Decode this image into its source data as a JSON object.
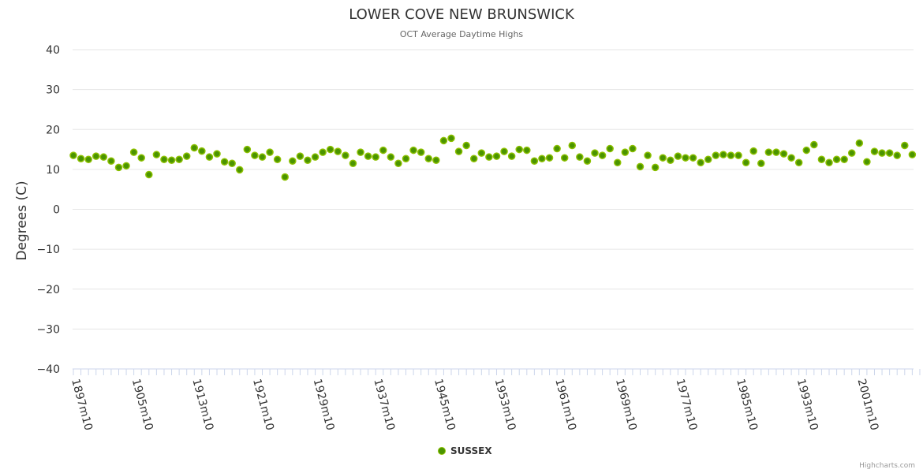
{
  "chart_data": {
    "type": "scatter",
    "title": "LOWER COVE NEW BRUNSWICK",
    "subtitle": "OCT Average Daytime Highs",
    "ylabel": "Degrees (C)",
    "ylim": [
      -40,
      40
    ],
    "yticks": [
      "40",
      "30",
      "20",
      "10",
      "0",
      "−10",
      "−20",
      "−30",
      "−40"
    ],
    "ytick_values": [
      40,
      30,
      20,
      10,
      0,
      -10,
      -20,
      -30,
      -40
    ],
    "start_year": 1897,
    "xticks": [
      "1897m10",
      "1905m10",
      "1913m10",
      "1921m10",
      "1929m10",
      "1937m10",
      "1945m10",
      "1953m10",
      "1961m10",
      "1969m10",
      "1977m10",
      "1985m10",
      "1993m10",
      "2001m10"
    ],
    "legend": "SUSSEX",
    "legend_position": "bottom",
    "color": "#4a9400",
    "values": [
      13.5,
      12.7,
      12.5,
      13.3,
      13.1,
      12.1,
      10.5,
      10.9,
      14.3,
      12.9,
      8.7,
      13.7,
      12.5,
      12.3,
      12.5,
      13.3,
      15.4,
      14.6,
      13.1,
      13.9,
      11.9,
      11.5,
      9.9,
      15.0,
      13.5,
      13.1,
      14.3,
      12.5,
      8.1,
      12.1,
      13.3,
      12.3,
      13.1,
      14.3,
      15.0,
      14.5,
      13.5,
      11.5,
      14.3,
      13.3,
      13.1,
      14.8,
      13.1,
      11.5,
      12.7,
      14.8,
      14.3,
      12.7,
      12.3,
      17.2,
      17.8,
      14.5,
      16.0,
      12.7,
      14.1,
      13.1,
      13.3,
      14.5,
      13.3,
      15.0,
      14.8,
      12.1,
      12.7,
      12.9,
      15.2,
      12.9,
      16.0,
      13.1,
      12.1,
      14.1,
      13.5,
      15.2,
      11.7,
      14.3,
      15.2,
      10.7,
      13.5,
      10.5,
      12.9,
      12.3,
      13.3,
      12.9,
      12.9,
      11.7,
      12.5,
      13.5,
      13.7,
      13.5,
      13.5,
      11.7,
      14.6,
      11.5,
      14.3,
      14.3,
      13.9,
      12.9,
      11.7,
      14.8,
      16.2,
      12.5,
      11.7,
      12.5,
      12.5,
      14.1,
      16.6,
      11.9,
      14.5,
      14.1,
      14.1,
      13.5,
      16.0,
      13.7
    ]
  },
  "credit": "Highcharts.com"
}
